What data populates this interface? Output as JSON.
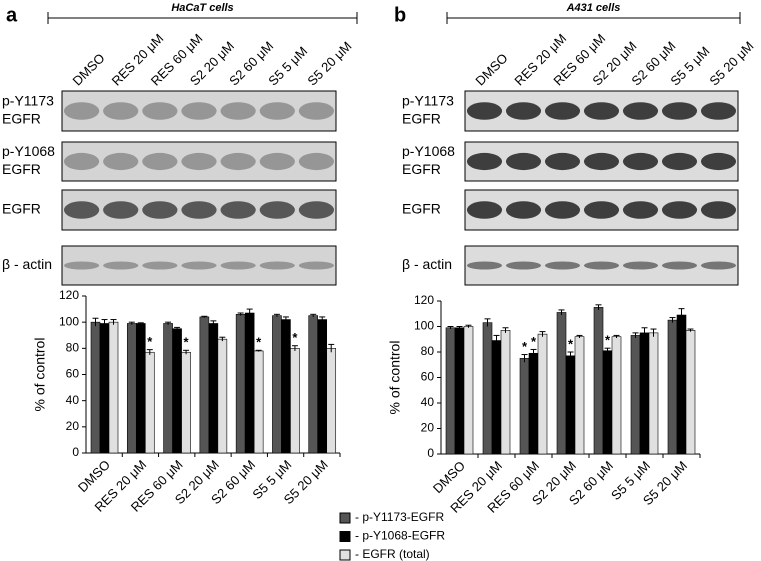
{
  "panels": [
    {
      "label": "a",
      "title": "HaCaT cells",
      "lanes": [
        "DMSO",
        "RES 20 μM",
        "RES 60 μM",
        "S2 20 μM",
        "S2 60 μM",
        "S5 5 μM",
        "S5 20 μM"
      ],
      "blots": [
        [
          "p-Y1173",
          "EGFR"
        ],
        [
          "p-Y1068",
          "EGFR"
        ],
        [
          "EGFR"
        ],
        [
          "β - actin"
        ]
      ]
    },
    {
      "label": "b",
      "title": "A431 cells",
      "lanes": [
        "DMSO",
        "RES 20 μM",
        "RES 60 μM",
        "S2 20 μM",
        "S2 60 μM",
        "S5 5 μM",
        "S5 20 μM"
      ],
      "blots": [
        [
          "p-Y1173",
          "EGFR"
        ],
        [
          "p-Y1068",
          "EGFR"
        ],
        [
          "EGFR"
        ],
        [
          "β - actin"
        ]
      ]
    }
  ],
  "chart_data": [
    {
      "type": "bar",
      "ylabel": "% of control",
      "categories": [
        "DMSO",
        "RES 20 μM",
        "RES 60 μM",
        "S2 20 μM",
        "S2 60 μM",
        "S5 5 μM",
        "S5 20 μM"
      ],
      "ylim": [
        0,
        120
      ],
      "yticks": [
        0,
        20,
        40,
        60,
        80,
        100,
        120
      ],
      "series": [
        {
          "color": "#555555",
          "values": [
            100,
            99,
            99,
            104,
            106,
            105,
            105
          ],
          "errors": [
            3,
            1,
            1,
            0.5,
            1,
            1,
            1
          ],
          "stars": [
            null,
            null,
            null,
            null,
            null,
            null,
            null
          ]
        },
        {
          "color": "#000000",
          "values": [
            99,
            99,
            95,
            99,
            107,
            102,
            102
          ],
          "errors": [
            3,
            0.5,
            1,
            2,
            3,
            2,
            2
          ],
          "stars": [
            null,
            null,
            null,
            null,
            null,
            null,
            null
          ]
        },
        {
          "color": "#e0e0e0",
          "values": [
            100,
            77,
            77,
            87,
            78,
            80,
            80
          ],
          "errors": [
            2,
            2,
            1.5,
            1.5,
            0.5,
            2,
            3
          ],
          "stars": [
            null,
            "*",
            "*",
            null,
            "*",
            "*",
            null
          ]
        }
      ]
    },
    {
      "type": "bar",
      "ylabel": "% of control",
      "categories": [
        "DMSO",
        "RES 20 μM",
        "RES 60 μM",
        "S2 20 μM",
        "S2 60 μM",
        "S5 5 μM",
        "S5 20 μM"
      ],
      "ylim": [
        0,
        120
      ],
      "yticks": [
        0,
        20,
        40,
        60,
        80,
        100,
        120
      ],
      "series": [
        {
          "name": "- p-Y1173-EGFR",
          "color": "#555555",
          "values": [
            99,
            103,
            75,
            111,
            115,
            93,
            105
          ],
          "errors": [
            1,
            3,
            3,
            2,
            2,
            2,
            2
          ],
          "stars": [
            null,
            null,
            "*",
            null,
            null,
            null,
            null
          ]
        },
        {
          "name": "- p-Y1068-EGFR",
          "color": "#000000",
          "values": [
            99,
            89,
            79,
            77,
            81,
            95,
            109
          ],
          "errors": [
            1,
            4,
            3,
            3,
            2,
            4,
            5
          ],
          "stars": [
            null,
            null,
            "*",
            "*",
            "*",
            null,
            null
          ]
        },
        {
          "name": "- EGFR (total)",
          "color": "#e0e0e0",
          "values": [
            100,
            97,
            94,
            92,
            92,
            95,
            97
          ],
          "errors": [
            1,
            2,
            2,
            1,
            1,
            3,
            1
          ],
          "stars": [
            null,
            null,
            null,
            null,
            null,
            null,
            null
          ]
        }
      ]
    }
  ]
}
